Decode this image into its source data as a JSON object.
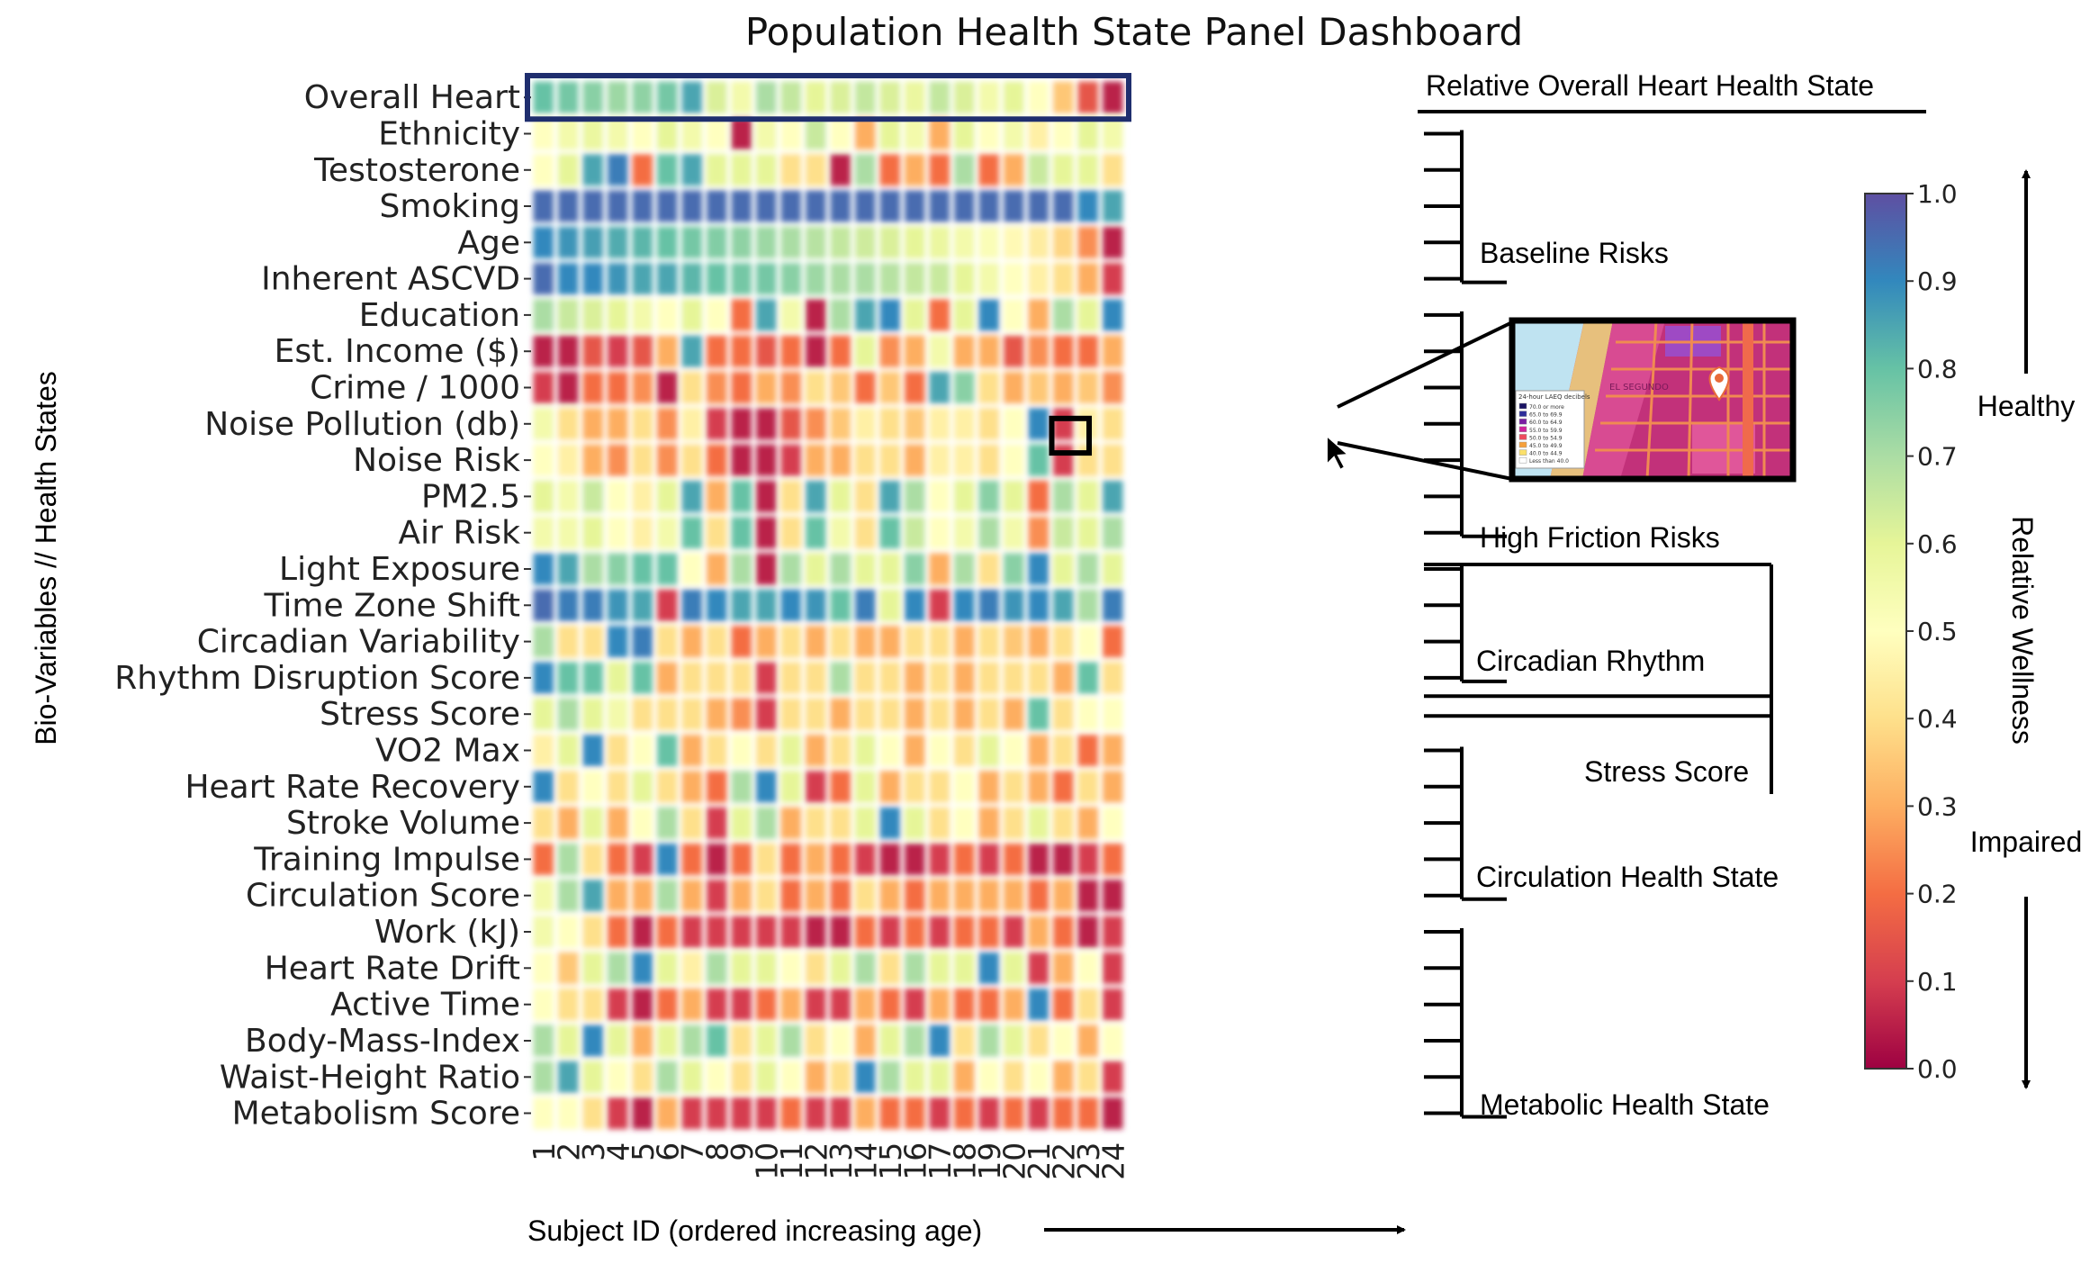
{
  "chart_data": {
    "type": "heatmap",
    "title": "Population Health State Panel Dashboard",
    "xlabel": "Subject ID (ordered increasing age)",
    "ylabel": "Bio-Variables  //  Health States",
    "colorbar_label": "Relative Wellness",
    "colorbar_range": [
      0.0,
      1.0
    ],
    "colorbar_ticks": [
      "1.0",
      "0.9",
      "0.8",
      "0.7",
      "0.6",
      "0.5",
      "0.4",
      "0.3",
      "0.2",
      "0.1",
      "0.0"
    ],
    "colorbar_top_label": "Healthy",
    "colorbar_bottom_label": "Impaired",
    "subjects": [
      "1",
      "2",
      "3",
      "4",
      "5",
      "6",
      "7",
      "8",
      "9",
      "10",
      "11",
      "12",
      "13",
      "14",
      "15",
      "16",
      "17",
      "18",
      "19",
      "20",
      "21",
      "22",
      "23",
      "24"
    ],
    "rows": [
      "Overall Heart",
      "Ethnicity",
      "Testosterone",
      "Smoking",
      "Age",
      "Inherent ASCVD",
      "Education",
      "Est. Income ($)",
      "Crime / 1000",
      "Noise Pollution (db)",
      "Noise Risk",
      "PM2.5",
      "Air Risk",
      "Light Exposure",
      "Time Zone Shift",
      "Circadian Variability",
      "Rhythm Disruption Score",
      "Stress Score",
      "VO2 Max",
      "Heart Rate Recovery",
      "Stroke Volume",
      "Training Impulse",
      "Circulation Score",
      "Work (kJ)",
      "Heart Rate Drift",
      "Active Time",
      "Body-Mass-Index",
      "Waist-Height Ratio",
      "Metabolism Score"
    ],
    "values": [
      [
        0.8,
        0.78,
        0.75,
        0.72,
        0.74,
        0.78,
        0.85,
        0.62,
        0.55,
        0.7,
        0.66,
        0.6,
        0.62,
        0.66,
        0.62,
        0.58,
        0.66,
        0.62,
        0.55,
        0.6,
        0.5,
        0.35,
        0.15,
        0.05
      ],
      [
        0.5,
        0.55,
        0.58,
        0.55,
        0.5,
        0.6,
        0.55,
        0.5,
        0.05,
        0.55,
        0.5,
        0.65,
        0.5,
        0.3,
        0.6,
        0.55,
        0.3,
        0.6,
        0.5,
        0.55,
        0.45,
        0.5,
        0.6,
        0.55
      ],
      [
        0.5,
        0.6,
        0.85,
        0.92,
        0.2,
        0.8,
        0.85,
        0.6,
        0.6,
        0.6,
        0.4,
        0.4,
        0.05,
        0.7,
        0.2,
        0.3,
        0.2,
        0.7,
        0.2,
        0.3,
        0.65,
        0.6,
        0.6,
        0.4
      ],
      [
        0.95,
        0.95,
        0.95,
        0.95,
        0.95,
        0.95,
        0.95,
        0.95,
        0.95,
        0.95,
        0.95,
        0.95,
        0.95,
        0.95,
        0.95,
        0.95,
        0.95,
        0.95,
        0.95,
        0.95,
        0.95,
        0.95,
        0.9,
        0.85
      ],
      [
        0.9,
        0.88,
        0.86,
        0.84,
        0.82,
        0.8,
        0.78,
        0.76,
        0.74,
        0.72,
        0.7,
        0.68,
        0.66,
        0.64,
        0.62,
        0.6,
        0.58,
        0.55,
        0.52,
        0.48,
        0.44,
        0.38,
        0.25,
        0.05
      ],
      [
        0.95,
        0.9,
        0.9,
        0.88,
        0.85,
        0.85,
        0.82,
        0.8,
        0.78,
        0.78,
        0.75,
        0.72,
        0.7,
        0.7,
        0.68,
        0.66,
        0.65,
        0.6,
        0.55,
        0.5,
        0.45,
        0.4,
        0.3,
        0.1
      ],
      [
        0.7,
        0.65,
        0.62,
        0.6,
        0.55,
        0.5,
        0.6,
        0.5,
        0.2,
        0.85,
        0.55,
        0.05,
        0.7,
        0.85,
        0.9,
        0.6,
        0.2,
        0.6,
        0.9,
        0.5,
        0.3,
        0.7,
        0.6,
        0.9
      ],
      [
        0.05,
        0.05,
        0.15,
        0.1,
        0.15,
        0.3,
        0.85,
        0.2,
        0.2,
        0.15,
        0.2,
        0.05,
        0.2,
        0.6,
        0.25,
        0.3,
        0.55,
        0.3,
        0.3,
        0.15,
        0.25,
        0.2,
        0.2,
        0.3
      ],
      [
        0.1,
        0.05,
        0.2,
        0.2,
        0.25,
        0.05,
        0.4,
        0.25,
        0.2,
        0.3,
        0.25,
        0.4,
        0.35,
        0.2,
        0.35,
        0.2,
        0.85,
        0.75,
        0.4,
        0.3,
        0.35,
        0.3,
        0.35,
        0.25
      ],
      [
        0.55,
        0.4,
        0.3,
        0.3,
        0.4,
        0.25,
        0.45,
        0.1,
        0.05,
        0.05,
        0.15,
        0.25,
        0.35,
        0.45,
        0.4,
        0.35,
        0.45,
        0.45,
        0.4,
        0.5,
        0.9,
        0.1,
        0.45,
        0.4
      ],
      [
        0.5,
        0.45,
        0.3,
        0.25,
        0.4,
        0.25,
        0.4,
        0.2,
        0.05,
        0.05,
        0.1,
        0.3,
        0.3,
        0.4,
        0.4,
        0.3,
        0.45,
        0.45,
        0.4,
        0.5,
        0.8,
        0.1,
        0.4,
        0.4
      ],
      [
        0.6,
        0.55,
        0.65,
        0.5,
        0.45,
        0.6,
        0.85,
        0.3,
        0.8,
        0.05,
        0.4,
        0.85,
        0.6,
        0.4,
        0.85,
        0.7,
        0.5,
        0.6,
        0.75,
        0.6,
        0.2,
        0.7,
        0.6,
        0.85
      ],
      [
        0.55,
        0.55,
        0.6,
        0.5,
        0.45,
        0.55,
        0.8,
        0.4,
        0.8,
        0.05,
        0.4,
        0.8,
        0.55,
        0.4,
        0.8,
        0.65,
        0.5,
        0.55,
        0.7,
        0.55,
        0.25,
        0.65,
        0.6,
        0.7
      ],
      [
        0.9,
        0.85,
        0.7,
        0.75,
        0.8,
        0.8,
        0.5,
        0.3,
        0.7,
        0.05,
        0.7,
        0.6,
        0.7,
        0.6,
        0.6,
        0.75,
        0.3,
        0.7,
        0.4,
        0.75,
        0.9,
        0.6,
        0.7,
        0.6
      ],
      [
        0.95,
        0.92,
        0.92,
        0.88,
        0.85,
        0.1,
        0.92,
        0.9,
        0.85,
        0.85,
        0.9,
        0.88,
        0.8,
        0.92,
        0.6,
        0.9,
        0.1,
        0.9,
        0.92,
        0.88,
        0.9,
        0.85,
        0.7,
        0.92
      ],
      [
        0.7,
        0.4,
        0.4,
        0.9,
        0.92,
        0.4,
        0.3,
        0.4,
        0.2,
        0.3,
        0.4,
        0.3,
        0.4,
        0.3,
        0.3,
        0.4,
        0.4,
        0.3,
        0.4,
        0.35,
        0.3,
        0.4,
        0.5,
        0.2
      ],
      [
        0.9,
        0.8,
        0.8,
        0.6,
        0.8,
        0.3,
        0.4,
        0.4,
        0.4,
        0.1,
        0.4,
        0.4,
        0.7,
        0.4,
        0.4,
        0.3,
        0.4,
        0.3,
        0.4,
        0.4,
        0.4,
        0.3,
        0.8,
        0.4
      ],
      [
        0.6,
        0.7,
        0.6,
        0.55,
        0.4,
        0.4,
        0.4,
        0.3,
        0.25,
        0.1,
        0.4,
        0.4,
        0.3,
        0.4,
        0.4,
        0.3,
        0.4,
        0.3,
        0.4,
        0.3,
        0.8,
        0.4,
        0.5,
        0.5
      ],
      [
        0.45,
        0.6,
        0.9,
        0.4,
        0.5,
        0.8,
        0.3,
        0.4,
        0.5,
        0.4,
        0.6,
        0.3,
        0.4,
        0.6,
        0.5,
        0.3,
        0.5,
        0.4,
        0.6,
        0.5,
        0.3,
        0.4,
        0.2,
        0.3
      ],
      [
        0.9,
        0.4,
        0.5,
        0.4,
        0.6,
        0.4,
        0.3,
        0.2,
        0.7,
        0.9,
        0.6,
        0.1,
        0.2,
        0.6,
        0.3,
        0.4,
        0.4,
        0.5,
        0.3,
        0.4,
        0.3,
        0.2,
        0.4,
        0.3
      ],
      [
        0.4,
        0.3,
        0.6,
        0.3,
        0.5,
        0.7,
        0.4,
        0.1,
        0.6,
        0.7,
        0.3,
        0.4,
        0.4,
        0.6,
        0.9,
        0.6,
        0.4,
        0.5,
        0.3,
        0.4,
        0.6,
        0.4,
        0.3,
        0.5
      ],
      [
        0.2,
        0.7,
        0.4,
        0.2,
        0.1,
        0.9,
        0.2,
        0.05,
        0.2,
        0.4,
        0.2,
        0.3,
        0.2,
        0.1,
        0.05,
        0.05,
        0.1,
        0.2,
        0.1,
        0.2,
        0.05,
        0.05,
        0.1,
        0.2
      ],
      [
        0.55,
        0.7,
        0.85,
        0.3,
        0.3,
        0.7,
        0.3,
        0.1,
        0.3,
        0.4,
        0.2,
        0.3,
        0.2,
        0.4,
        0.3,
        0.2,
        0.3,
        0.3,
        0.3,
        0.3,
        0.2,
        0.3,
        0.05,
        0.05
      ],
      [
        0.55,
        0.5,
        0.4,
        0.2,
        0.05,
        0.2,
        0.1,
        0.1,
        0.1,
        0.1,
        0.1,
        0.05,
        0.05,
        0.2,
        0.1,
        0.2,
        0.1,
        0.2,
        0.2,
        0.1,
        0.3,
        0.2,
        0.05,
        0.1
      ],
      [
        0.5,
        0.35,
        0.6,
        0.7,
        0.9,
        0.6,
        0.45,
        0.7,
        0.6,
        0.6,
        0.5,
        0.4,
        0.6,
        0.7,
        0.4,
        0.7,
        0.6,
        0.6,
        0.9,
        0.6,
        0.1,
        0.3,
        0.5,
        0.1
      ],
      [
        0.5,
        0.4,
        0.4,
        0.1,
        0.05,
        0.2,
        0.3,
        0.1,
        0.1,
        0.2,
        0.3,
        0.1,
        0.1,
        0.3,
        0.2,
        0.1,
        0.3,
        0.2,
        0.2,
        0.3,
        0.9,
        0.2,
        0.4,
        0.1
      ],
      [
        0.7,
        0.6,
        0.9,
        0.6,
        0.3,
        0.6,
        0.7,
        0.8,
        0.4,
        0.6,
        0.7,
        0.4,
        0.5,
        0.3,
        0.6,
        0.7,
        0.9,
        0.4,
        0.7,
        0.6,
        0.4,
        0.5,
        0.3,
        0.5
      ],
      [
        0.7,
        0.85,
        0.6,
        0.5,
        0.4,
        0.7,
        0.6,
        0.5,
        0.4,
        0.6,
        0.5,
        0.3,
        0.4,
        0.9,
        0.7,
        0.6,
        0.6,
        0.3,
        0.5,
        0.4,
        0.5,
        0.3,
        0.4,
        0.1
      ],
      [
        0.5,
        0.5,
        0.4,
        0.1,
        0.05,
        0.3,
        0.1,
        0.1,
        0.1,
        0.1,
        0.2,
        0.1,
        0.1,
        0.3,
        0.2,
        0.2,
        0.1,
        0.2,
        0.1,
        0.2,
        0.1,
        0.2,
        0.2,
        0.05
      ]
    ],
    "highlighted_row": "Overall Heart",
    "highlighted_label": "Relative Overall Heart Health State",
    "groups": [
      {
        "label": "Baseline Risks",
        "rows": [
          "Ethnicity",
          "Testosterone",
          "Smoking",
          "Age",
          "Inherent ASCVD"
        ]
      },
      {
        "label": "High Friction Risks",
        "rows": [
          "Education",
          "Est. Income ($)",
          "Crime / 1000",
          "Noise Pollution (db)",
          "Noise Risk",
          "PM2.5",
          "Air Risk"
        ]
      },
      {
        "label": "Circadian Rhythm",
        "rows": [
          "Light Exposure",
          "Time Zone Shift",
          "Circadian Variability",
          "Rhythm Disruption Score"
        ]
      },
      {
        "label": "Stress Score",
        "rows": [
          "Stress Score"
        ]
      },
      {
        "label": "Circulation Health State",
        "rows": [
          "VO2 Max",
          "Heart Rate Recovery",
          "Stroke Volume",
          "Training Impulse",
          "Circulation Score"
        ]
      },
      {
        "label": "Metabolic Health State",
        "rows": [
          "Work (kJ)",
          "Heart Rate Drift",
          "Active Time",
          "Body-Mass-Index",
          "Waist-Height Ratio",
          "Metabolism Score"
        ]
      }
    ],
    "inset_map": {
      "legend_title": "24-hour LAEQ decibels",
      "legend_items": [
        {
          "label": "70.0 or more",
          "color": "#1b1464"
        },
        {
          "label": "65.0 to 69.9",
          "color": "#2e2e9a"
        },
        {
          "label": "60.0 to 64.9",
          "color": "#7a1fa2"
        },
        {
          "label": "55.0 to 59.9",
          "color": "#d0249c"
        },
        {
          "label": "50.0 to 54.9",
          "color": "#ef4b5e"
        },
        {
          "label": "45.0 to 49.9",
          "color": "#f6a03b"
        },
        {
          "label": "40.0 to 44.9",
          "color": "#fbe06a"
        },
        {
          "label": "Less than 40.0",
          "color": "#ffffff"
        }
      ],
      "place_label": "EL SEGUNDO"
    },
    "highlighted_cell": {
      "row": "Noise Pollution (db)",
      "subject": "22"
    }
  }
}
